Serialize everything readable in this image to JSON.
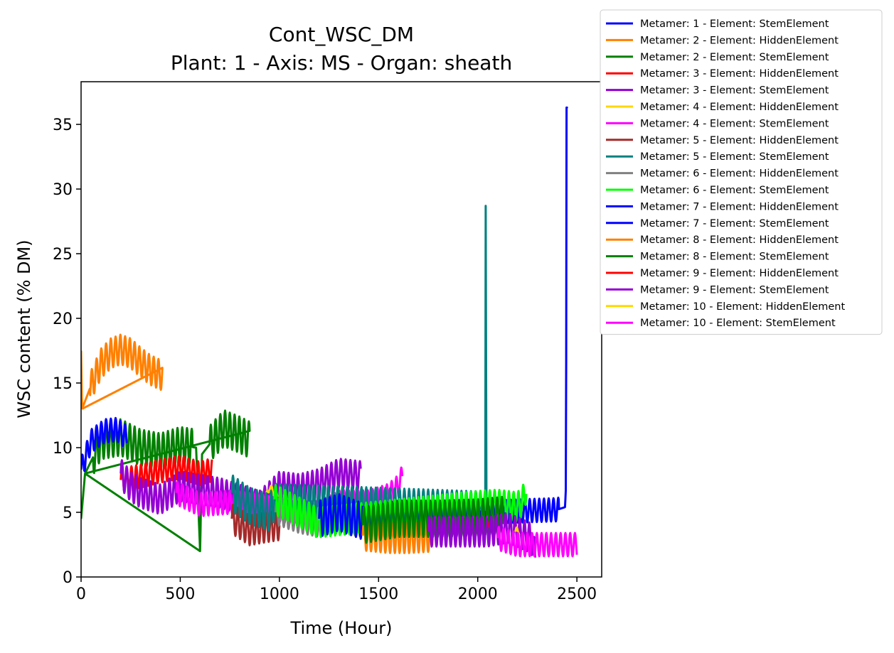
{
  "chart_data": {
    "type": "line",
    "title": "Cont_WSC_DM",
    "subtitle": "Plant: 1 - Axis: MS - Organ: sheath",
    "xlabel": "Time (Hour)",
    "ylabel": "WSC content (% DM)",
    "xlim": [
      0,
      2625
    ],
    "ylim": [
      0,
      38.3
    ],
    "xticks": [
      0,
      500,
      1000,
      1500,
      2000,
      2500
    ],
    "yticks": [
      0,
      5,
      10,
      15,
      20,
      25,
      30,
      35
    ],
    "grid": false,
    "legend_position": "outside-top-right",
    "series": [
      {
        "name": "Metamer: 1 - Element: StemElement",
        "color": "#0000ff",
        "t0": 1200,
        "t1": 2450,
        "points": [
          [
            1200,
            4.8
          ],
          [
            1300,
            5.0
          ],
          [
            1400,
            4.7
          ],
          [
            1600,
            4.8
          ],
          [
            1800,
            4.9
          ],
          [
            2000,
            5.0
          ],
          [
            2200,
            5.1
          ],
          [
            2400,
            5.2
          ],
          [
            2440,
            5.4
          ],
          [
            2445,
            7.0
          ],
          [
            2448,
            36.3
          ]
        ]
      },
      {
        "name": "Metamer: 2 - Element: HiddenElement",
        "color": "#ff8000",
        "t0": 0,
        "t1": 410,
        "points": [
          [
            0,
            17.5
          ],
          [
            5,
            13.0
          ],
          [
            50,
            14.8
          ],
          [
            100,
            16.5
          ],
          [
            150,
            17.3
          ],
          [
            200,
            17.6
          ],
          [
            250,
            17.3
          ],
          [
            300,
            16.6
          ],
          [
            350,
            16.0
          ],
          [
            405,
            15.6
          ]
        ]
      },
      {
        "name": "Metamer: 2 - Element: StemElement",
        "color": "#008000",
        "t0": 0,
        "t1": 850,
        "points": [
          [
            0,
            4.5
          ],
          [
            20,
            8.0
          ],
          [
            100,
            10.5
          ],
          [
            200,
            10.8
          ],
          [
            300,
            10.0
          ],
          [
            400,
            9.7
          ],
          [
            500,
            10.2
          ],
          [
            580,
            10.0
          ],
          [
            600,
            2.0
          ],
          [
            610,
            9.5
          ],
          [
            660,
            10.5
          ],
          [
            720,
            11.5
          ],
          [
            800,
            11.0
          ],
          [
            850,
            10.6
          ]
        ]
      },
      {
        "name": "Metamer: 3 - Element: HiddenElement",
        "color": "#ff0000",
        "t0": 200,
        "t1": 660,
        "points": [
          [
            200,
            7.5
          ],
          [
            300,
            7.8
          ],
          [
            400,
            8.2
          ],
          [
            500,
            8.5
          ],
          [
            600,
            8.0
          ],
          [
            660,
            8.3
          ]
        ]
      },
      {
        "name": "Metamer: 3 - Element: StemElement",
        "color": "#9400d3",
        "t0": 200,
        "t1": 1410,
        "points": [
          [
            200,
            8.0
          ],
          [
            250,
            7.0
          ],
          [
            300,
            6.5
          ],
          [
            400,
            6.0
          ],
          [
            500,
            7.0
          ],
          [
            700,
            6.5
          ],
          [
            900,
            5.5
          ],
          [
            1000,
            7.0
          ],
          [
            1100,
            6.8
          ],
          [
            1200,
            7.2
          ],
          [
            1300,
            8.0
          ],
          [
            1410,
            7.8
          ]
        ]
      },
      {
        "name": "Metamer: 4 - Element: HiddenElement",
        "color": "#ffd700",
        "t0": 930,
        "t1": 990,
        "points": [
          [
            930,
            6.0
          ],
          [
            950,
            7.0
          ],
          [
            970,
            6.5
          ],
          [
            990,
            6.2
          ]
        ]
      },
      {
        "name": "Metamer: 4 - Element: StemElement",
        "color": "#ff00ff",
        "t0": 480,
        "t1": 1620,
        "points": [
          [
            480,
            6.5
          ],
          [
            600,
            5.6
          ],
          [
            760,
            5.8
          ],
          [
            900,
            5.5
          ],
          [
            1050,
            5.0
          ],
          [
            1200,
            5.0
          ],
          [
            1300,
            5.8
          ],
          [
            1450,
            5.8
          ],
          [
            1550,
            6.3
          ],
          [
            1600,
            7.0
          ],
          [
            1620,
            7.8
          ]
        ]
      },
      {
        "name": "Metamer: 5 - Element: HiddenElement",
        "color": "#a52a2a",
        "t0": 760,
        "t1": 1000,
        "points": [
          [
            760,
            4.5
          ],
          [
            850,
            3.6
          ],
          [
            920,
            3.8
          ],
          [
            1000,
            4.0
          ]
        ]
      },
      {
        "name": "Metamer: 5 - Element: StemElement",
        "color": "#008080",
        "t0": 760,
        "t1": 2045,
        "points": [
          [
            760,
            6.5
          ],
          [
            850,
            5.5
          ],
          [
            950,
            5.0
          ],
          [
            975,
            5.8
          ],
          [
            2038,
            5.2
          ],
          [
            2040,
            28.7
          ],
          [
            2043,
            5.2
          ]
        ]
      },
      {
        "name": "Metamer: 6 - Element: HiddenElement",
        "color": "#808080",
        "t0": 980,
        "t1": 1420,
        "points": [
          [
            980,
            5.0
          ],
          [
            1100,
            4.3
          ],
          [
            1200,
            4.0
          ],
          [
            1300,
            4.3
          ],
          [
            1420,
            4.0
          ]
        ]
      },
      {
        "name": "Metamer: 6 - Element: StemElement",
        "color": "#00ff00",
        "t0": 975,
        "t1": 2245,
        "points": [
          [
            975,
            6.0
          ],
          [
            1050,
            5.4
          ],
          [
            1150,
            4.6
          ],
          [
            1190,
            4.2
          ],
          [
            2000,
            5.5
          ],
          [
            2100,
            5.6
          ],
          [
            2200,
            5.4
          ],
          [
            2230,
            6.0
          ],
          [
            2245,
            7.0
          ]
        ]
      },
      {
        "name": "Metamer: 7 - Element: HiddenElement",
        "color": "#0000ff",
        "t0": 1200,
        "t1": 1420,
        "points": [
          [
            1200,
            4.5
          ],
          [
            1300,
            5.0
          ],
          [
            1420,
            4.3
          ]
        ]
      },
      {
        "name": "Metamer: 7 - Element: StemElement",
        "color": "#0000ff",
        "t0": 0,
        "t1": 230,
        "points": [
          [
            0,
            8.3
          ],
          [
            50,
            10.5
          ],
          [
            120,
            11.3
          ],
          [
            180,
            11.4
          ],
          [
            230,
            10.8
          ]
        ]
      },
      {
        "name": "Metamer: 8 - Element: HiddenElement",
        "color": "#ff8000",
        "t0": 1420,
        "t1": 1760,
        "points": [
          [
            1420,
            3.2
          ],
          [
            1550,
            3.0
          ],
          [
            1650,
            3.0
          ],
          [
            1760,
            3.1
          ]
        ]
      },
      {
        "name": "Metamer: 8 - Element: StemElement",
        "color": "#008000",
        "t0": 1420,
        "t1": 2130,
        "points": [
          [
            1420,
            4.0
          ],
          [
            1600,
            4.5
          ],
          [
            1800,
            4.5
          ],
          [
            2000,
            4.6
          ],
          [
            2130,
            4.8
          ]
        ]
      },
      {
        "name": "Metamer: 9 - Element: HiddenElement",
        "color": "#ff0000",
        "t0": 2040,
        "t1": 2060,
        "points": [
          [
            2040,
            4.0
          ],
          [
            2060,
            4.2
          ]
        ]
      },
      {
        "name": "Metamer: 9 - Element: StemElement",
        "color": "#9400d3",
        "t0": 1750,
        "t1": 2290,
        "points": [
          [
            1750,
            3.5
          ],
          [
            1900,
            3.5
          ],
          [
            2050,
            3.5
          ],
          [
            2150,
            3.8
          ],
          [
            2270,
            3.0
          ],
          [
            2290,
            1.5
          ]
        ]
      },
      {
        "name": "Metamer: 10 - Element: HiddenElement",
        "color": "#ffd700",
        "t0": 2190,
        "t1": 2210,
        "points": [
          [
            2190,
            3.5
          ],
          [
            2210,
            3.6
          ]
        ]
      },
      {
        "name": "Metamer: 10 - Element: StemElement",
        "color": "#ff00ff",
        "t0": 2100,
        "t1": 2500,
        "points": [
          [
            2100,
            3.0
          ],
          [
            2200,
            2.5
          ],
          [
            2300,
            2.5
          ],
          [
            2400,
            2.5
          ],
          [
            2500,
            2.5
          ]
        ]
      }
    ]
  }
}
